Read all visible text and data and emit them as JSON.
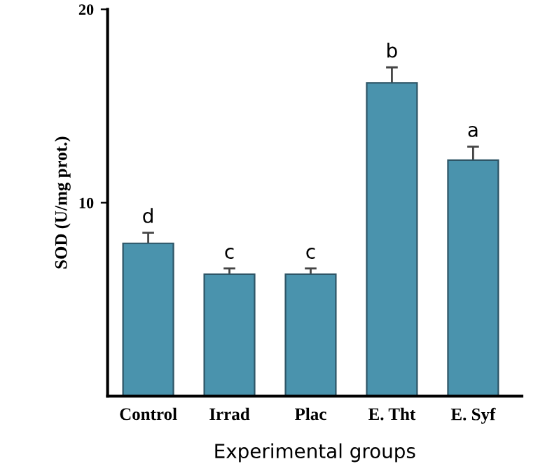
{
  "chart_data": {
    "type": "bar",
    "xlabel": "Experimental groups",
    "ylabel": "SOD (U/mg prot.)",
    "categories": [
      "Control",
      "Irrad",
      "Plac",
      "E. Tht",
      "E. Syf"
    ],
    "values": [
      7.9,
      6.3,
      6.3,
      16.2,
      12.2
    ],
    "errors": [
      0.55,
      0.3,
      0.3,
      0.8,
      0.7
    ],
    "color": "#4a93ad",
    "ylim": [
      0,
      20
    ],
    "yticks": [
      10,
      20
    ],
    "grid": false,
    "legend": false,
    "annotations": [
      "d",
      "c",
      "c",
      "b",
      "a"
    ]
  }
}
